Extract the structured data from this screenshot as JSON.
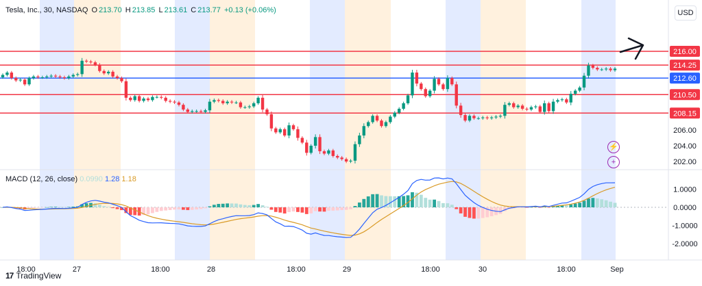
{
  "header": {
    "symbol": "Tesla, Inc., 30, NASDAQ",
    "o_label": "O",
    "o": "213.70",
    "h_label": "H",
    "h": "213.85",
    "l_label": "L",
    "l": "213.61",
    "c_label": "C",
    "c": "213.77",
    "change": "+0.13 (+0.06%)"
  },
  "currency": "USD",
  "macd": {
    "label": "MACD (12, 26, close)",
    "hist": "0.0990",
    "macd": "1.28",
    "signal": "1.18"
  },
  "brand": "TradingView",
  "icons": [
    "lightning-icon",
    "plus-icon"
  ],
  "colors": {
    "up": "#089981",
    "down": "#f23645",
    "resistance": "#f23645",
    "pivot": "#2962ff",
    "macd": "#2962ff",
    "signal": "#d99a25",
    "blue_band": "#e3ebff",
    "orange_band": "#fff1de"
  },
  "chart_data": [
    {
      "type": "candlestick",
      "title": "Tesla, Inc., 30, NASDAQ",
      "y_ticks": [
        "216.00",
        "214.25",
        "212.60",
        "210.50",
        "208.15",
        "206.00",
        "204.00",
        "202.00"
      ],
      "ylim": [
        201.5,
        217.5
      ],
      "x_ticks": [
        "18:00",
        "27",
        "18:00",
        "28",
        "18:00",
        "29",
        "18:00",
        "30",
        "18:00",
        "Sep"
      ],
      "horizontal_levels": [
        {
          "value": 216.0,
          "color": "red"
        },
        {
          "value": 214.25,
          "color": "red"
        },
        {
          "value": 212.6,
          "color": "blue"
        },
        {
          "value": 210.5,
          "color": "red"
        },
        {
          "value": 208.15,
          "color": "red"
        }
      ],
      "close": [
        213.0,
        213.3,
        212.6,
        212.3,
        212.4,
        211.8,
        212.6,
        212.8,
        212.7,
        212.7,
        212.8,
        212.9,
        212.8,
        212.7,
        212.6,
        212.8,
        213.0,
        213.1,
        214.8,
        214.7,
        214.6,
        214.3,
        213.5,
        213.2,
        213.4,
        212.8,
        212.6,
        212.2,
        210.1,
        209.8,
        210.3,
        209.7,
        210.0,
        209.8,
        210.2,
        210.2,
        210.1,
        209.7,
        209.6,
        209.5,
        209.2,
        208.6,
        208.3,
        208.4,
        208.4,
        208.3,
        208.5,
        209.6,
        209.8,
        209.7,
        209.4,
        209.6,
        209.5,
        209.5,
        208.9,
        208.9,
        209.0,
        209.4,
        210.1,
        208.6,
        208.0,
        206.2,
        205.7,
        206.1,
        205.3,
        206.6,
        206.1,
        205.0,
        204.4,
        203.1,
        204.0,
        205.1,
        203.3,
        203.0,
        203.4,
        202.7,
        202.5,
        202.3,
        202.0,
        202.1,
        204.2,
        205.3,
        206.5,
        207.0,
        207.8,
        207.2,
        206.5,
        207.0,
        207.7,
        208.2,
        208.7,
        209.4,
        210.4,
        213.3,
        211.9,
        211.2,
        210.3,
        211.0,
        212.5,
        211.8,
        211.2,
        212.6,
        211.8,
        209.1,
        207.9,
        207.2,
        207.8,
        207.5,
        207.5,
        207.6,
        207.5,
        207.6,
        207.7,
        207.8,
        209.2,
        209.4,
        208.9,
        209.1,
        208.7,
        208.6,
        208.9,
        209.0,
        208.3,
        209.4,
        208.4,
        209.6,
        209.8,
        209.9,
        209.5,
        210.6,
        211.0,
        211.4,
        212.9,
        214.2,
        213.9,
        213.7,
        213.7,
        213.8,
        213.6,
        213.8
      ]
    },
    {
      "type": "macd",
      "title": "MACD (12, 26, close)",
      "y_ticks": [
        "1.0000",
        "0.0000",
        "-1.0000",
        "-2.0000"
      ],
      "ylim": [
        -2.3,
        2.0
      ],
      "series": [
        {
          "name": "Histogram",
          "last": "0.0990"
        },
        {
          "name": "MACD",
          "last": "1.28"
        },
        {
          "name": "Signal",
          "last": "1.18"
        }
      ]
    }
  ]
}
